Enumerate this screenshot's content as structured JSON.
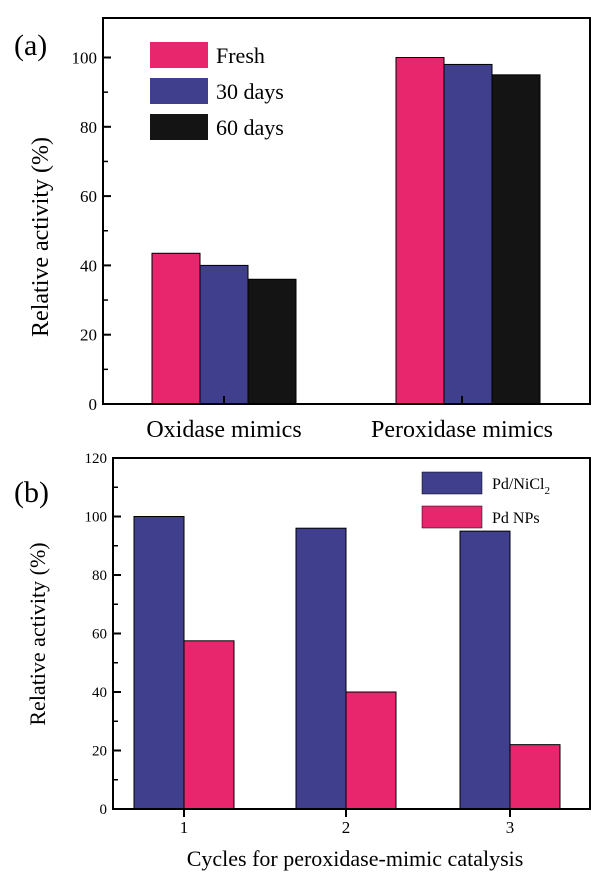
{
  "colors": {
    "pink": "#e8266e",
    "blue": "#3f3f8e",
    "black": "#141414"
  },
  "chart_data": [
    {
      "type": "bar",
      "panel_label": "(a)",
      "categories": [
        "Oxidase mimics",
        "Peroxidase mimics"
      ],
      "series": [
        {
          "name": "Fresh",
          "values": [
            43.5,
            100
          ]
        },
        {
          "name": "30 days",
          "values": [
            40,
            98
          ]
        },
        {
          "name": "60 days",
          "values": [
            36,
            95
          ]
        }
      ],
      "ylabel": "Relative activity (%)",
      "xlabel": "",
      "ylim": [
        0,
        110
      ],
      "yticks": [
        "0",
        "20",
        "40",
        "60",
        "80",
        "100"
      ],
      "legend_position": "top-left",
      "grid": false
    },
    {
      "type": "bar",
      "panel_label": "(b)",
      "categories": [
        "1",
        "2",
        "3"
      ],
      "series": [
        {
          "name": "Pd/NiCl",
          "name_sub": "2",
          "values": [
            100,
            96,
            95
          ]
        },
        {
          "name": "Pd NPs",
          "values": [
            57.5,
            40,
            22
          ]
        }
      ],
      "ylabel": "Relative activity (%)",
      "xlabel": "Cycles for peroxidase-mimic catalysis",
      "ylim": [
        0,
        120
      ],
      "yticks": [
        "0",
        "20",
        "40",
        "60",
        "80",
        "100",
        "120"
      ],
      "legend_position": "top-right",
      "grid": false
    }
  ]
}
